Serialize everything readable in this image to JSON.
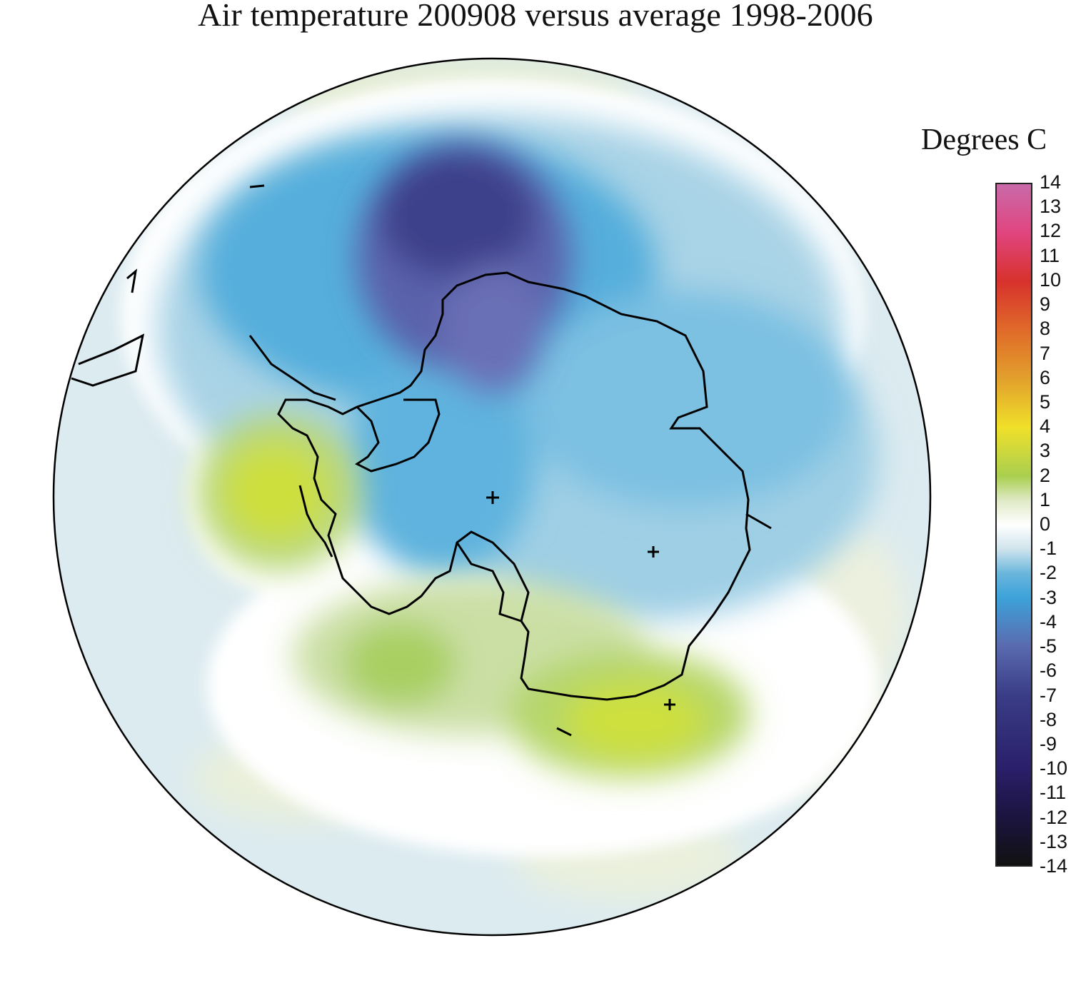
{
  "title": "Air temperature 200908 versus average 1998-2006",
  "legend": {
    "unit": "Degrees C",
    "range": [
      -14,
      14
    ],
    "ticks": [
      "14",
      "13",
      "12",
      "11",
      "10",
      "9",
      "8",
      "7",
      "6",
      "5",
      "4",
      "3",
      "2",
      "1",
      "0",
      "-1",
      "-2",
      "-3",
      "-4",
      "-5",
      "-6",
      "-7",
      "-8",
      "-9",
      "-10",
      "-11",
      "-12",
      "-13",
      "-14"
    ],
    "colors": {
      "14": "#c96aa9",
      "12": "#e0457f",
      "10": "#d7322c",
      "8": "#e06a2a",
      "6": "#e2a02c",
      "4": "#f0e02a",
      "2": "#a9cf4f",
      "1": "#dfe9c5",
      "0": "#ffffff",
      "-1": "#cfe4ec",
      "-2": "#6ab6dc",
      "-3": "#3da2da",
      "-5": "#5a6aae",
      "-7": "#3a3d86",
      "-10": "#2a1f6a",
      "-12": "#1c1440",
      "-14": "#111111"
    }
  },
  "map": {
    "projection": "south polar stereographic",
    "region": "Antarctica and Southern Ocean",
    "markers": [
      "plus",
      "plus",
      "plus"
    ]
  }
}
